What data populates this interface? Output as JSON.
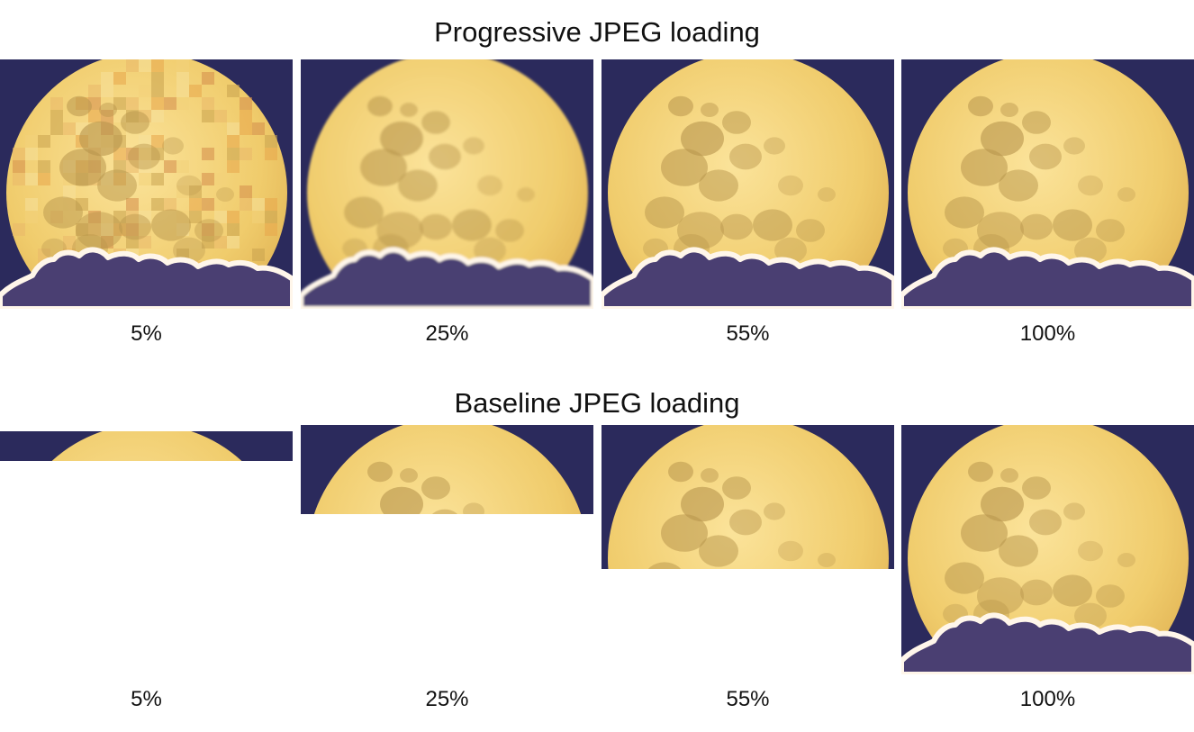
{
  "progressive": {
    "title": "Progressive JPEG loading",
    "steps": [
      {
        "label": "5%",
        "load_fraction": 0.05
      },
      {
        "label": "25%",
        "load_fraction": 0.25
      },
      {
        "label": "55%",
        "load_fraction": 0.55
      },
      {
        "label": "100%",
        "load_fraction": 1.0
      }
    ]
  },
  "baseline": {
    "title": "Baseline JPEG loading",
    "steps": [
      {
        "label": "5%",
        "load_fraction": 0.05
      },
      {
        "label": "25%",
        "load_fraction": 0.25
      },
      {
        "label": "55%",
        "load_fraction": 0.55
      },
      {
        "label": "100%",
        "load_fraction": 1.0
      }
    ]
  },
  "colors": {
    "sky": "#2b2a5c",
    "moon": "#f0cc6c",
    "moon_dark": "#b8954c",
    "cloud_edge": "#fff6ea",
    "cloud_body": "#4a3f72"
  }
}
